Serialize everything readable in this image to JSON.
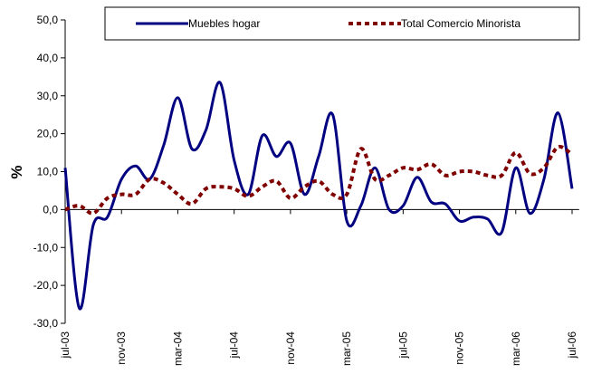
{
  "chart_data": {
    "type": "line",
    "y_label": "%",
    "categories": [
      "jul-03",
      null,
      null,
      null,
      "nov-03",
      null,
      null,
      null,
      "mar-04",
      null,
      null,
      null,
      "jul-04",
      null,
      null,
      null,
      "nov-04",
      null,
      null,
      null,
      "mar-05",
      null,
      null,
      null,
      "jul-05",
      null,
      null,
      null,
      "nov-05",
      null,
      null,
      null,
      "mar-06",
      null,
      null,
      null,
      "jul-06"
    ],
    "series": [
      {
        "name": "Muebles hogar",
        "color": "#000080",
        "dash": false,
        "values": [
          11,
          -26,
          -4,
          -2,
          8,
          11.5,
          8,
          17,
          29.5,
          16,
          21,
          33.5,
          13,
          4,
          19.5,
          14,
          17.5,
          4,
          14,
          25,
          -3,
          1,
          11,
          0,
          1,
          8.5,
          2,
          1.5,
          -3,
          -2,
          -2.5,
          -6,
          11,
          -1,
          8,
          25.5,
          5.5
        ]
      },
      {
        "name": "Total Comercio Minorista",
        "color": "#800000",
        "dash": true,
        "values": [
          0,
          1,
          -1,
          3,
          4,
          4,
          8,
          7,
          4,
          1.5,
          5.5,
          6,
          5.5,
          3.5,
          6,
          7.5,
          3,
          6,
          7.5,
          4,
          4,
          16,
          8,
          9,
          11,
          10.5,
          12,
          9,
          10,
          10,
          9,
          9,
          15,
          9.5,
          11,
          16.5,
          14.5
        ]
      }
    ],
    "ylim": [
      -30,
      50
    ],
    "yticks": [
      {
        "value": -30,
        "label": "-30,0"
      },
      {
        "value": -20,
        "label": "-20,0"
      },
      {
        "value": -10,
        "label": "-10,0"
      },
      {
        "value": 0,
        "label": "0,0"
      },
      {
        "value": 10,
        "label": "10,0"
      },
      {
        "value": 20,
        "label": "20,0"
      },
      {
        "value": 30,
        "label": "30,0"
      },
      {
        "value": 40,
        "label": "40,0"
      },
      {
        "value": 50,
        "label": "50,0"
      }
    ],
    "legend": "top"
  }
}
